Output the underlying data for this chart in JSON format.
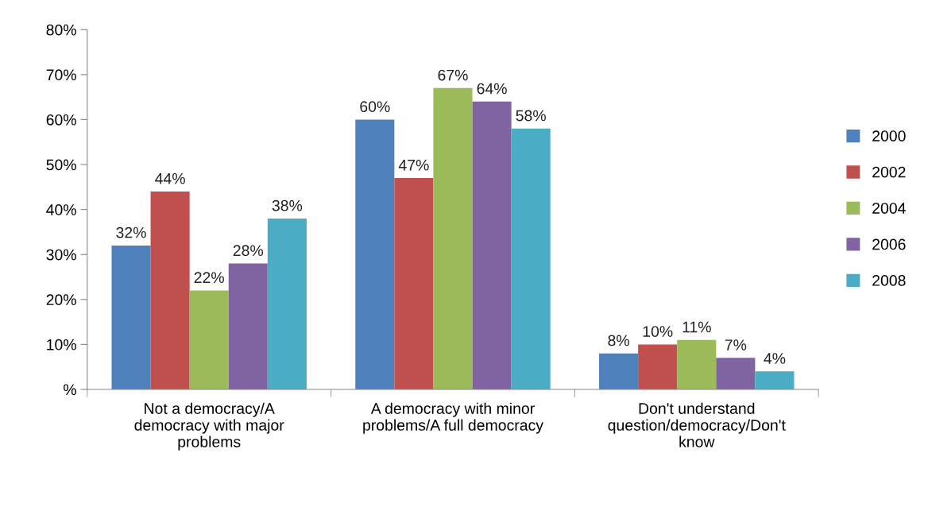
{
  "chart_data": {
    "type": "bar",
    "categories": [
      "Not a democracy/A\ndemocracy with major\nproblems",
      "A democracy with minor\nproblems/A full democracy",
      "Don't understand\nquestion/democracy/Don't\nknow"
    ],
    "series": [
      {
        "name": "2000",
        "color": "#4f81bd",
        "values": [
          32,
          60,
          8
        ],
        "value_labels": [
          "32%",
          "60%",
          "8%"
        ]
      },
      {
        "name": "2002",
        "color": "#c0504d",
        "values": [
          44,
          47,
          10
        ],
        "value_labels": [
          "44%",
          "47%",
          "10%"
        ]
      },
      {
        "name": "2004",
        "color": "#9bbb59",
        "values": [
          22,
          67,
          11
        ],
        "value_labels": [
          "22%",
          "67%",
          "11%"
        ]
      },
      {
        "name": "2006",
        "color": "#8064a2",
        "values": [
          28,
          64,
          7
        ],
        "value_labels": [
          "28%",
          "64%",
          "7%"
        ]
      },
      {
        "name": "2008",
        "color": "#4bacc6",
        "values": [
          38,
          58,
          4
        ],
        "value_labels": [
          "38%",
          "58%",
          "4%"
        ]
      }
    ],
    "ylim": [
      0,
      80
    ],
    "yticks": [
      {
        "value": 0,
        "label": "%"
      },
      {
        "value": 10,
        "label": "10%"
      },
      {
        "value": 20,
        "label": "20%"
      },
      {
        "value": 30,
        "label": "30%"
      },
      {
        "value": 40,
        "label": "40%"
      },
      {
        "value": 50,
        "label": "50%"
      },
      {
        "value": 60,
        "label": "60%"
      },
      {
        "value": 70,
        "label": "70%"
      },
      {
        "value": 80,
        "label": "80%"
      }
    ],
    "grid": false,
    "legend": "right"
  }
}
